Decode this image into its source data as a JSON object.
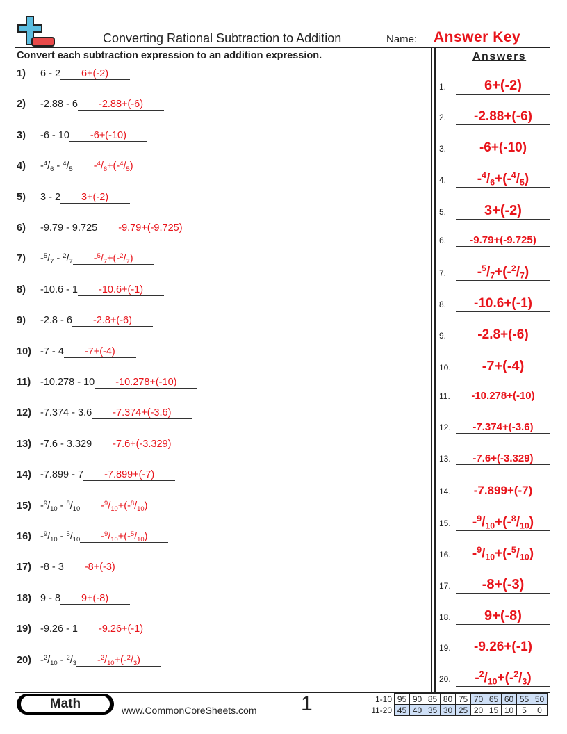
{
  "header": {
    "title": "Converting Rational Subtraction to Addition",
    "name_label": "Name:",
    "name_value": "Answer Key",
    "logo": "plus-minus-logo-icon"
  },
  "instructions": "Convert each subtraction expression to an addition expression.",
  "answers_heading": "Answers",
  "colors": {
    "accent": "#e8141b",
    "logo_blue": "#5bbde0",
    "logo_red": "#e84a4a",
    "score_shade": "#cfe0f7"
  },
  "problems": [
    {
      "n": "1)",
      "q": "6 - 2",
      "a": "6+(-2)"
    },
    {
      "n": "2)",
      "q": "-2.88 - 6",
      "a": "-2.88+(-6)"
    },
    {
      "n": "3)",
      "q": "-6 - 10",
      "a": "-6+(-10)"
    },
    {
      "n": "4)",
      "q": "-4/6 - 4/5",
      "a": "-4/6+(-4/5)"
    },
    {
      "n": "5)",
      "q": "3 - 2",
      "a": "3+(-2)"
    },
    {
      "n": "6)",
      "q": "-9.79 - 9.725",
      "a": "-9.79+(-9.725)"
    },
    {
      "n": "7)",
      "q": "-5/7 - 2/7",
      "a": "-5/7+(-2/7)"
    },
    {
      "n": "8)",
      "q": "-10.6 - 1",
      "a": "-10.6+(-1)"
    },
    {
      "n": "9)",
      "q": "-2.8 - 6",
      "a": "-2.8+(-6)"
    },
    {
      "n": "10)",
      "q": "-7 - 4",
      "a": "-7+(-4)"
    },
    {
      "n": "11)",
      "q": "-10.278 - 10",
      "a": "-10.278+(-10)"
    },
    {
      "n": "12)",
      "q": "-7.374 - 3.6",
      "a": "-7.374+(-3.6)"
    },
    {
      "n": "13)",
      "q": "-7.6 - 3.329",
      "a": "-7.6+(-3.329)"
    },
    {
      "n": "14)",
      "q": "-7.899 - 7",
      "a": "-7.899+(-7)"
    },
    {
      "n": "15)",
      "q": "-9/10 - 8/10",
      "a": "-9/10+(-8/10)"
    },
    {
      "n": "16)",
      "q": "-9/10 - 5/10",
      "a": "-9/10+(-5/10)"
    },
    {
      "n": "17)",
      "q": "-8 - 3",
      "a": "-8+(-3)"
    },
    {
      "n": "18)",
      "q": "9 - 8",
      "a": "9+(-8)"
    },
    {
      "n": "19)",
      "q": "-9.26 - 1",
      "a": "-9.26+(-1)"
    },
    {
      "n": "20)",
      "q": "-2/10 - 2/3",
      "a": "-2/10+(-2/3)"
    }
  ],
  "answer_numbers": [
    "1.",
    "2.",
    "3.",
    "4.",
    "5.",
    "6.",
    "7.",
    "8.",
    "9.",
    "10.",
    "11.",
    "12.",
    "13.",
    "14.",
    "15.",
    "16.",
    "17.",
    "18.",
    "19.",
    "20."
  ],
  "footer": {
    "subject": "Math",
    "website": "www.CommonCoreSheets.com",
    "page": "1",
    "score_rows": [
      {
        "label": "1-10",
        "values": [
          "95",
          "90",
          "85",
          "80",
          "75",
          "70",
          "65",
          "60",
          "55",
          "50"
        ],
        "shaded": [
          false,
          false,
          false,
          false,
          false,
          true,
          true,
          true,
          true,
          true
        ]
      },
      {
        "label": "11-20",
        "values": [
          "45",
          "40",
          "35",
          "30",
          "25",
          "20",
          "15",
          "10",
          "5",
          "0"
        ],
        "shaded": [
          true,
          true,
          true,
          true,
          true,
          false,
          false,
          false,
          false,
          false
        ]
      }
    ]
  }
}
